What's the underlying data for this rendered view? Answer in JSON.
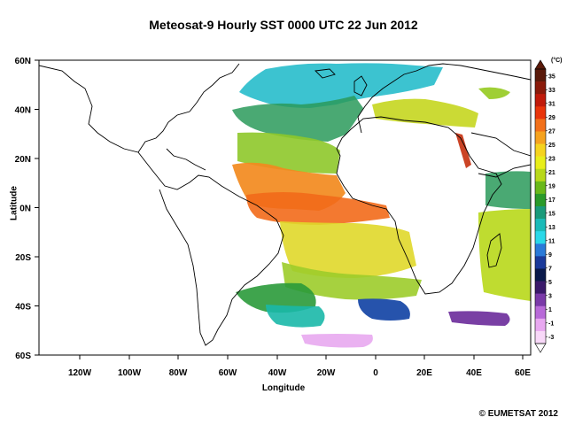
{
  "title": "Meteosat-9 Hourly SST  0000 UTC  22 Jun 2012",
  "x_axis": {
    "label": "Longitude",
    "ticks": [
      "120W",
      "100W",
      "80W",
      "60W",
      "40W",
      "20W",
      "0",
      "20E",
      "40E",
      "60E"
    ]
  },
  "y_axis": {
    "label": "Latitude",
    "ticks": [
      "60N",
      "40N",
      "20N",
      "0N",
      "20S",
      "40S",
      "60S"
    ]
  },
  "colorbar": {
    "unit": "(°C)",
    "labels": [
      "35",
      "33",
      "31",
      "29",
      "27",
      "25",
      "23",
      "21",
      "19",
      "17",
      "15",
      "13",
      "11",
      "9",
      "7",
      "5",
      "3",
      "1",
      "-1",
      "-3"
    ],
    "colors": [
      "#5a1a0a",
      "#8a1a0a",
      "#c01a0a",
      "#e8340a",
      "#f2701a",
      "#f5a21e",
      "#f5d31e",
      "#e8ee1a",
      "#b8d81a",
      "#6ab81a",
      "#2a9a2a",
      "#1a9a7a",
      "#1abab8",
      "#2ad8e8",
      "#2a7ad8",
      "#1a3a9a",
      "#0a1a4a",
      "#3a1a6a",
      "#7a3aa8",
      "#b86ad8",
      "#e8a8f0",
      "#f8d8f8"
    ]
  },
  "copyright": "© EUMETSAT 2012"
}
